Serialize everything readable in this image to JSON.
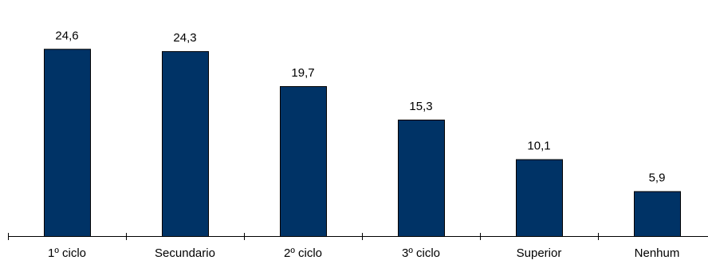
{
  "chart_data": {
    "type": "bar",
    "categories": [
      "1º ciclo",
      "Secundario",
      "2º ciclo",
      "3º ciclo",
      "Superior",
      "Nenhum"
    ],
    "values": [
      24.6,
      24.3,
      19.7,
      15.3,
      10.1,
      5.9
    ],
    "value_labels": [
      "24,6",
      "24,3",
      "19,7",
      "15,3",
      "10,1",
      "5,9"
    ],
    "ylim": [
      0,
      28.4
    ],
    "bar_color": "#003366",
    "grid": false,
    "title": "",
    "xlabel": "",
    "ylabel": ""
  }
}
